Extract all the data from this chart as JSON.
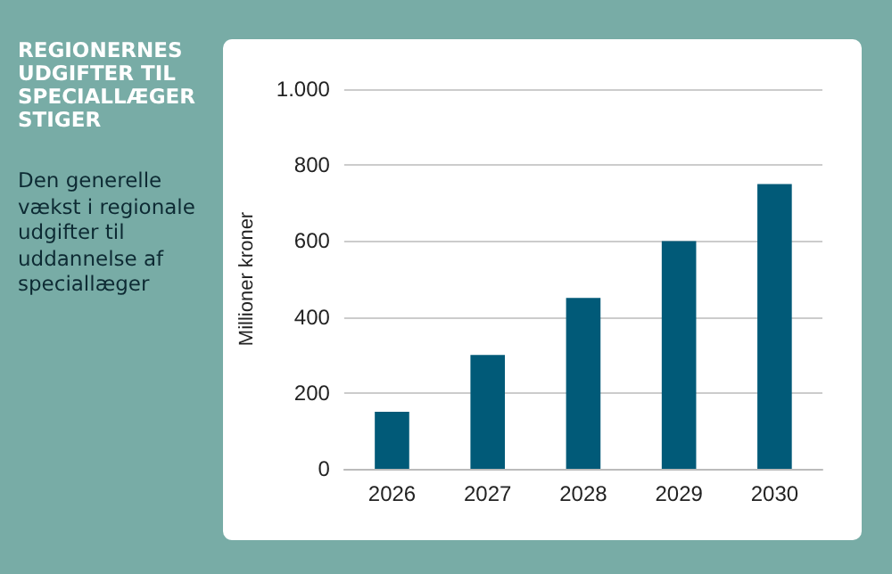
{
  "chart_data": {
    "type": "bar",
    "title": "REGIONERNES UDGIFTER TIL SPECIALLÆGER STIGER",
    "subtitle": "Den generelle vækst i regionale udgifter til uddannelse af speciallæger",
    "ylabel": "Millioner kroner",
    "categories": [
      "2026",
      "2027",
      "2028",
      "2029",
      "2030"
    ],
    "values": [
      150,
      300,
      450,
      600,
      750
    ],
    "color": "#015a78",
    "ylim": [
      0,
      1000
    ],
    "yticks": [
      0,
      200,
      400,
      600,
      800,
      {
        "value": 1000,
        "label": "1.000"
      }
    ],
    "grid": "y"
  }
}
